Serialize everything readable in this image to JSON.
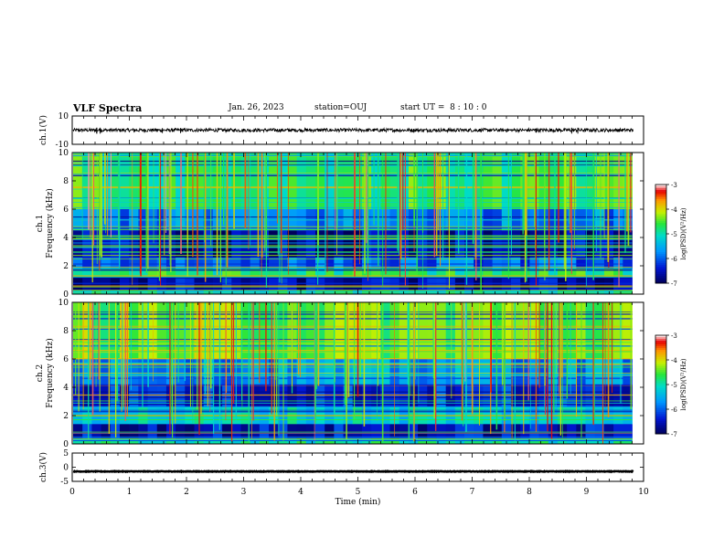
{
  "header": {
    "title": "VLF Spectra",
    "date": "Jan. 26, 2023",
    "station": "station=OUJ",
    "start": "start UT =  8 : 10 : 0"
  },
  "colors": {
    "trace": "#000000",
    "frame": "#000000",
    "spectrogram_background": "#0b1fd0"
  },
  "chart_data": [
    {
      "type": "line",
      "panel": "ch1-waveform",
      "ylabel": "ch.1(V)",
      "ylim": [
        -10,
        10
      ],
      "yticks": [
        "10",
        "-10"
      ],
      "xlim": [
        0,
        10
      ],
      "baseline": 0,
      "amplitude": 1.2
    },
    {
      "type": "heatmap",
      "panel": "ch1-spectrogram",
      "ylabel_top": "ch.1",
      "ylabel": "Frequency (kHz)",
      "ylim": [
        0,
        10
      ],
      "yticks": [
        "0",
        "2",
        "4",
        "6",
        "8",
        "10"
      ],
      "xlim": [
        0,
        9.8
      ],
      "colorbar": {
        "label": "log(PSD)(V²/Hz)",
        "range": [
          -7,
          -3
        ],
        "ticks": [
          "-3",
          "-4",
          "-5",
          "-6",
          "-7"
        ]
      },
      "bands": [
        {
          "f_low": 0,
          "f_high": 0.3,
          "level": -5.0
        },
        {
          "f_low": 0.3,
          "f_high": 1.2,
          "level": -6.6
        },
        {
          "f_low": 1.2,
          "f_high": 1.8,
          "level": -4.8
        },
        {
          "f_low": 1.8,
          "f_high": 2.6,
          "level": -6.0
        },
        {
          "f_low": 2.6,
          "f_high": 4.5,
          "level": -6.7
        },
        {
          "f_low": 4.5,
          "f_high": 6.0,
          "level": -5.8
        },
        {
          "f_low": 6.0,
          "f_high": 10.0,
          "level": -4.7
        }
      ]
    },
    {
      "type": "heatmap",
      "panel": "ch2-spectrogram",
      "ylabel_top": "ch.2",
      "ylabel": "Frequency (kHz)",
      "ylim": [
        0,
        10
      ],
      "yticks": [
        "0",
        "2",
        "4",
        "6",
        "8",
        "10"
      ],
      "xlim": [
        0,
        9.8
      ],
      "colorbar": {
        "label": "log(PSD)(V²/Hz)",
        "range": [
          -7,
          -3
        ],
        "ticks": [
          "-3",
          "-4",
          "-5",
          "-6",
          "-7"
        ]
      },
      "bands": [
        {
          "f_low": 0,
          "f_high": 0.4,
          "level": -5.0
        },
        {
          "f_low": 0.4,
          "f_high": 1.4,
          "level": -6.5
        },
        {
          "f_low": 1.4,
          "f_high": 2.6,
          "level": -5.2
        },
        {
          "f_low": 2.6,
          "f_high": 4.2,
          "level": -6.3
        },
        {
          "f_low": 4.2,
          "f_high": 6.0,
          "level": -5.7
        },
        {
          "f_low": 6.0,
          "f_high": 10.0,
          "level": -4.4
        }
      ]
    },
    {
      "type": "line",
      "panel": "ch3-waveform",
      "ylabel": "ch.3(V)",
      "ylim": [
        -5,
        5
      ],
      "yticks": [
        "5",
        "0",
        "-5"
      ],
      "xlim": [
        0,
        10
      ],
      "xlabel": "Time (min)",
      "xticks": [
        "0",
        "1",
        "2",
        "3",
        "4",
        "5",
        "6",
        "7",
        "8",
        "9",
        "10"
      ],
      "baseline": -1.5,
      "amplitude": 0.25
    }
  ]
}
